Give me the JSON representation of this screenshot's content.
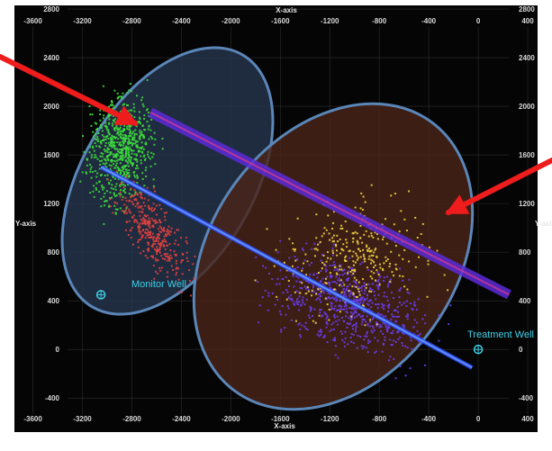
{
  "chart_data": {
    "type": "scatter",
    "title": "",
    "xlabel": "X-axis",
    "ylabel": "Y-axis",
    "xlim": [
      -3750,
      480
    ],
    "ylim": [
      -680,
      2830
    ],
    "x_ticks": [
      -3600,
      -3200,
      -2800,
      -2400,
      -2000,
      -1600,
      -1200,
      -800,
      -400,
      0,
      400
    ],
    "y_ticks": [
      2800,
      2400,
      2000,
      1600,
      1200,
      800,
      400,
      0,
      -400
    ],
    "grid": true,
    "legend": "none",
    "colors": {
      "background": "#050505",
      "monitor_cluster": "#3ddc3d",
      "red_cluster": "#e04040",
      "yellow_cluster": "#f0d040",
      "purple_cluster": "#6a3cf0",
      "well_line": "#2a4cff",
      "ellipse_left_fill": "#26344c",
      "ellipse_right_fill": "#4a2418",
      "ellipse_stroke": "#5a86b8",
      "arrow": "#ee1c1c",
      "well_label": "#3fd0e8"
    },
    "wells": [
      {
        "label": "Monitor Well",
        "x": -3050,
        "y": 450
      },
      {
        "label": "Treatment Well",
        "x": 0,
        "y": 0
      }
    ],
    "well_paths": [
      {
        "from": [
          -3050,
          1500
        ],
        "to": [
          -50,
          -150
        ]
      },
      {
        "from": [
          -2650,
          1950
        ],
        "to": [
          250,
          450
        ]
      }
    ],
    "series": [
      {
        "color": "green",
        "approx_center": [
          -2900,
          1600
        ],
        "extent": "x -3350..-2500, y 1000..2600"
      },
      {
        "color": "red",
        "approx_center": [
          -2650,
          1000
        ],
        "extent": "x -3200..-2100, y 0..1650"
      },
      {
        "color": "yellow",
        "approx_center": [
          -1000,
          700
        ],
        "extent": "x -2200..-250, y -300..1700"
      },
      {
        "color": "purple",
        "approx_center": [
          -1100,
          400
        ],
        "extent": "x -2000..300, y -400..1000"
      }
    ]
  }
}
